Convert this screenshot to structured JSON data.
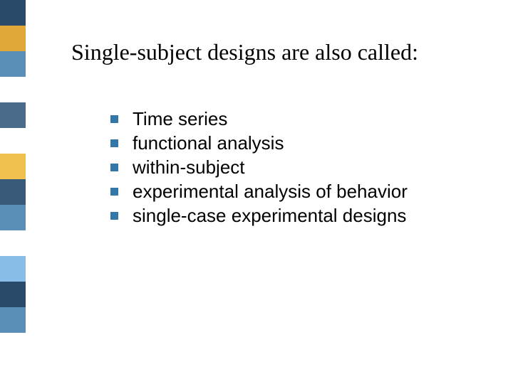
{
  "title": "Single-subject designs are also called:",
  "bullets": {
    "color": "#3277a8",
    "size": 11
  },
  "list": [
    "Time series",
    "functional analysis",
    "within-subject",
    "experimental analysis of behavior",
    "single-case experimental designs"
  ],
  "sidebar_colors": [
    "#2a4a6a",
    "#e0a838",
    "#5a8fb8",
    "#ffffff",
    "#4a6a8a",
    "#ffffff",
    "#f0c050",
    "#3a5a7a",
    "#5a8fb8",
    "#ffffff",
    "#88bde8",
    "#2a4a6a",
    "#5a8fb8",
    "#ffffff",
    "#ffffff"
  ],
  "typography": {
    "title_font": "Times New Roman",
    "title_size": 32,
    "body_font": "Arial",
    "body_size": 26,
    "text_color": "#000000"
  },
  "background_color": "#ffffff"
}
